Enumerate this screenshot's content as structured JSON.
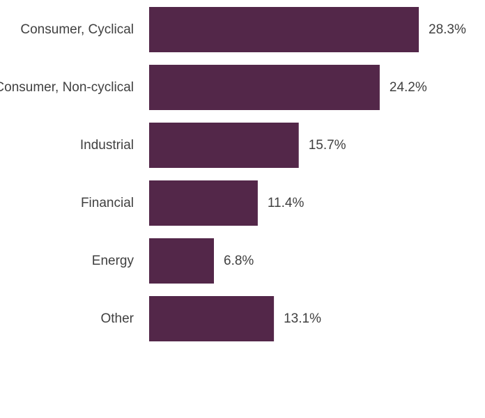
{
  "chart_data": {
    "type": "bar",
    "orientation": "horizontal",
    "categories": [
      "Consumer, Cyclical",
      "Consumer, Non-cyclical",
      "Industrial",
      "Financial",
      "Energy",
      "Other"
    ],
    "values": [
      28.3,
      24.2,
      15.7,
      11.4,
      6.8,
      13.1
    ],
    "value_labels": [
      "28.3%",
      "24.2%",
      "15.7%",
      "11.4%",
      "6.8%",
      "13.1%"
    ],
    "unit": "%",
    "xlim": [
      0,
      28.3
    ],
    "grid": false,
    "legend": "none",
    "bar_color": "#532749"
  }
}
